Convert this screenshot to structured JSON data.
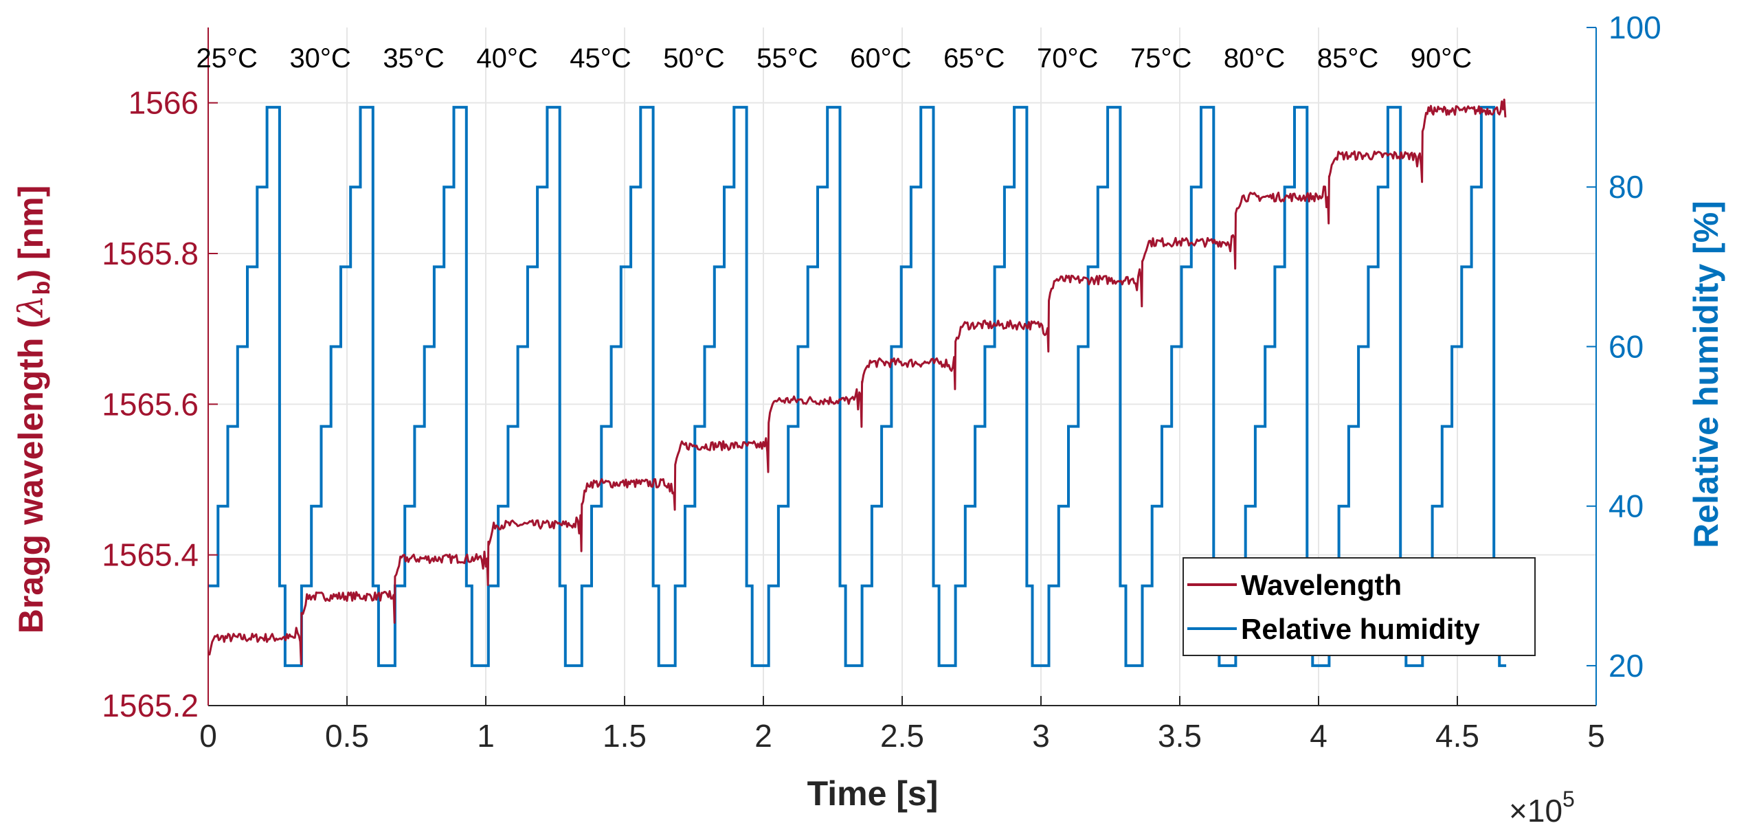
{
  "chart_data": {
    "type": "line",
    "xlabel": "Time [s]",
    "x_exponent_base": "×10",
    "x_exponent_power": "5",
    "xlim": [
      0,
      5
    ],
    "x_ticks": [
      "0",
      "0.5",
      "1",
      "1.5",
      "2",
      "2.5",
      "3",
      "3.5",
      "4",
      "4.5",
      "5"
    ],
    "ylabel_left_pre": "Bragg wavelength (",
    "ylabel_left_lambda": "λ",
    "ylabel_left_sub": "b",
    "ylabel_left_post": ") [nm]",
    "ylim_left": [
      1565.2,
      1566.1
    ],
    "y_ticks_left": [
      "1565.2",
      "1565.4",
      "1565.6",
      "1565.8",
      "1566"
    ],
    "ylabel_right": "Relative humidity [%]",
    "ylim_right": [
      15,
      100
    ],
    "y_ticks_right": [
      "20",
      "40",
      "60",
      "80",
      "100"
    ],
    "grid": true,
    "legend_position": "bottom-right",
    "colors": {
      "wavelength": "#a2142f",
      "humidity": "#0072bd"
    },
    "temperature_labels": [
      "25°C",
      "30°C",
      "35°C",
      "40°C",
      "45°C",
      "50°C",
      "55°C",
      "60°C",
      "65°C",
      "70°C",
      "75°C",
      "80°C",
      "85°C",
      "90°C"
    ],
    "humidity_cycle": {
      "start_x": 0,
      "period_x": 0.3365,
      "cycles": 14,
      "step_levels": [
        30,
        40,
        50,
        60,
        70,
        80,
        90
      ],
      "low_level": 20,
      "restore_level": 30
    },
    "series": [
      {
        "name": "Wavelength",
        "axis": "left",
        "plateau_levels": [
          1565.29,
          1565.345,
          1565.395,
          1565.44,
          1565.495,
          1565.545,
          1565.605,
          1565.655,
          1565.705,
          1565.765,
          1565.815,
          1565.875,
          1565.93,
          1565.99
        ]
      },
      {
        "name": "Relative humidity",
        "axis": "right"
      }
    ]
  }
}
